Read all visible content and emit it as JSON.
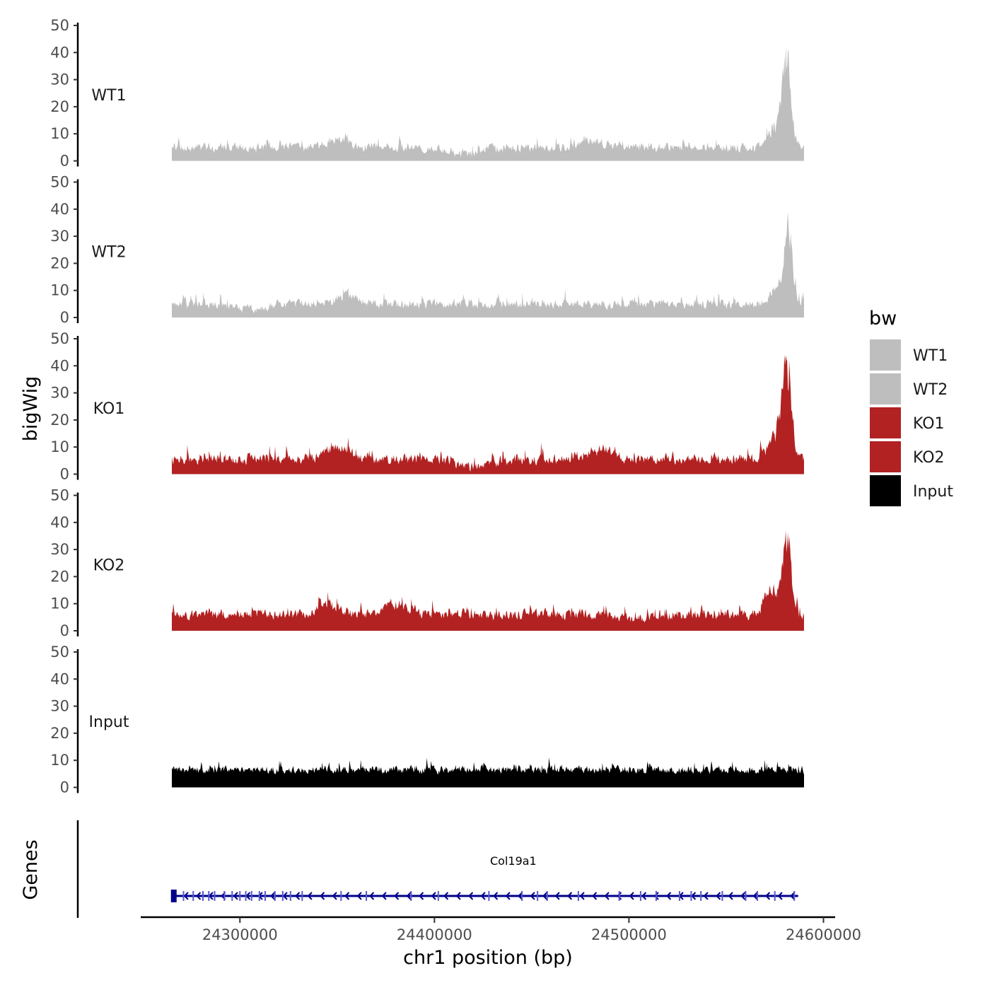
{
  "chart_data": {
    "type": "area",
    "title": "",
    "xlabel": "chr1 position (bp)",
    "ylabel": "bigWig",
    "genes_label": "Genes",
    "xlim": [
      24265000,
      24590000
    ],
    "ylim": [
      0,
      50
    ],
    "x_ticks": [
      24300000,
      24400000,
      24500000,
      24600000
    ],
    "x_tick_labels": [
      "24300000",
      "24400000",
      "24500000",
      "24600000"
    ],
    "y_ticks": [
      0,
      10,
      20,
      30,
      40,
      50
    ],
    "y_tick_labels": [
      "0",
      "10",
      "20",
      "30",
      "40",
      "50"
    ],
    "legend": {
      "title": "bw",
      "position": "right",
      "entries": [
        {
          "name": "WT1",
          "color": "#bebebe"
        },
        {
          "name": "WT2",
          "color": "#bebebe"
        },
        {
          "name": "KO1",
          "color": "#b22222"
        },
        {
          "name": "KO2",
          "color": "#b22222"
        },
        {
          "name": "Input",
          "color": "#000000"
        }
      ]
    },
    "series": [
      {
        "name": "WT1",
        "color": "#bebebe",
        "baseline": 5,
        "noise": 4,
        "peaks": [
          {
            "center": 24581000,
            "width": 3200,
            "height": 30
          },
          {
            "center": 24575000,
            "width": 5000,
            "height": 7
          },
          {
            "center": 24350000,
            "width": 8000,
            "height": 3
          },
          {
            "center": 24480000,
            "width": 8000,
            "height": 3
          }
        ],
        "dips": [
          {
            "center": 24415000,
            "width": 10000,
            "depth": 3
          }
        ]
      },
      {
        "name": "WT2",
        "color": "#bebebe",
        "baseline": 5,
        "noise": 4,
        "peaks": [
          {
            "center": 24582000,
            "width": 3000,
            "height": 26
          },
          {
            "center": 24576000,
            "width": 5000,
            "height": 6
          },
          {
            "center": 24355000,
            "width": 8000,
            "height": 3
          }
        ],
        "dips": [
          {
            "center": 24305000,
            "width": 10000,
            "depth": 2
          }
        ]
      },
      {
        "name": "KO1",
        "color": "#b22222",
        "baseline": 5.5,
        "noise": 4.5,
        "peaks": [
          {
            "center": 24581000,
            "width": 3400,
            "height": 33
          },
          {
            "center": 24575000,
            "width": 5000,
            "height": 8
          },
          {
            "center": 24350000,
            "width": 8000,
            "height": 4
          },
          {
            "center": 24485000,
            "width": 8000,
            "height": 4
          }
        ],
        "dips": [
          {
            "center": 24420000,
            "width": 12000,
            "depth": 3
          }
        ]
      },
      {
        "name": "KO2",
        "color": "#b22222",
        "baseline": 6,
        "noise": 4.5,
        "peaks": [
          {
            "center": 24581000,
            "width": 3000,
            "height": 28
          },
          {
            "center": 24573000,
            "width": 5000,
            "height": 9
          },
          {
            "center": 24345000,
            "width": 8000,
            "height": 4
          },
          {
            "center": 24380000,
            "width": 8000,
            "height": 4
          }
        ],
        "dips": [
          {
            "center": 24505000,
            "width": 10000,
            "depth": 2
          }
        ]
      },
      {
        "name": "Input",
        "color": "#000000",
        "baseline": 6.5,
        "noise": 3.5,
        "peaks": [],
        "dips": []
      }
    ],
    "gene": {
      "name": "Col19a1",
      "color": "#00008b",
      "start": 24265000,
      "end": 24587000,
      "strand": "-",
      "exons": [
        24266000,
        24271000,
        24276000,
        24281000,
        24284000,
        24287000,
        24292000,
        24296000,
        24300000,
        24303000,
        24306000,
        24310000,
        24313000,
        24318000,
        24322000,
        24326000,
        24332000,
        24352000,
        24365000,
        24388000,
        24402000,
        24428000,
        24445000,
        24453000,
        24458000,
        24474000,
        24495000,
        24506000,
        24514000,
        24526000,
        24532000,
        24537000,
        24548000,
        24560000,
        24566000,
        24575000,
        24585000
      ]
    }
  }
}
